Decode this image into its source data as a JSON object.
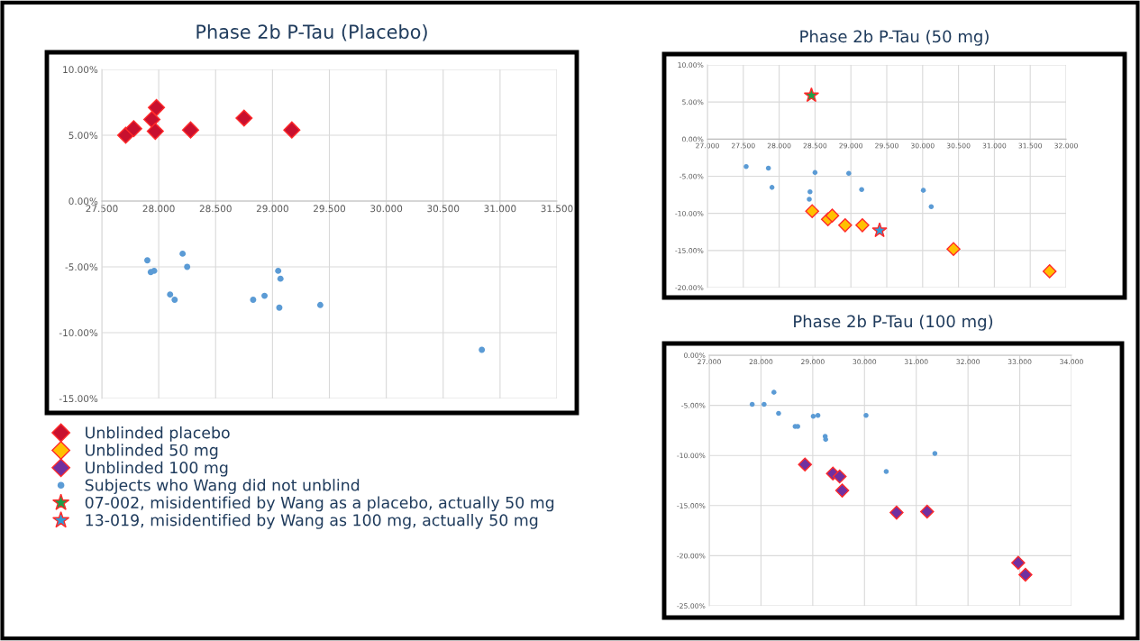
{
  "chart_data": [
    {
      "type": "scatter",
      "title": "Phase 2b P-Tau (Placebo)",
      "xlim": [
        27.5,
        31.5
      ],
      "xticks": [
        {
          "value": 27.5,
          "label": "27.500"
        },
        {
          "value": 28.0,
          "label": "28.000"
        },
        {
          "value": 28.5,
          "label": "28.500"
        },
        {
          "value": 29.0,
          "label": "29.000"
        },
        {
          "value": 29.5,
          "label": "29.500"
        },
        {
          "value": 30.0,
          "label": "30.000"
        },
        {
          "value": 30.5,
          "label": "30.500"
        },
        {
          "value": 31.0,
          "label": "31.000"
        },
        {
          "value": 31.5,
          "label": "31.500"
        }
      ],
      "ylim": [
        -15,
        10
      ],
      "yticks": [
        {
          "value": 10,
          "label": "10.00%"
        },
        {
          "value": 5,
          "label": "5.00%"
        },
        {
          "value": 0,
          "label": "0.00%"
        },
        {
          "value": -5,
          "label": "-5.00%"
        },
        {
          "value": -10,
          "label": "-10.00%"
        },
        {
          "value": -15,
          "label": "-15.00%"
        }
      ],
      "grid": true,
      "legend": "bottom",
      "series": [
        {
          "name": "Unblinded placebo",
          "color": "#c8102e",
          "marker": "diamond",
          "x": [
            27.71,
            27.78,
            27.94,
            27.98,
            27.97,
            28.28,
            28.75,
            29.17
          ],
          "values": [
            5.0,
            5.5,
            6.2,
            7.1,
            5.3,
            5.4,
            6.3,
            5.4
          ]
        },
        {
          "name": "Subjects who Wang did not unblind",
          "color": "#5b9bd5",
          "marker": "circle",
          "x": [
            27.9,
            27.93,
            27.96,
            28.21,
            28.25,
            28.1,
            28.14,
            28.83,
            28.93,
            29.05,
            29.07,
            29.06,
            29.42,
            30.84
          ],
          "values": [
            -4.5,
            -5.4,
            -5.3,
            -4.0,
            -5.0,
            -7.1,
            -7.5,
            -7.5,
            -7.2,
            -5.3,
            -5.9,
            -8.1,
            -7.9,
            -11.3
          ]
        }
      ]
    },
    {
      "type": "scatter",
      "title": "Phase 2b P-Tau (50 mg)",
      "xlim": [
        27.0,
        32.0
      ],
      "xticks": [
        {
          "value": 27.0,
          "label": "27.000"
        },
        {
          "value": 27.5,
          "label": "27.500"
        },
        {
          "value": 28.0,
          "label": "28.000"
        },
        {
          "value": 28.5,
          "label": "28.500"
        },
        {
          "value": 29.0,
          "label": "29.000"
        },
        {
          "value": 29.5,
          "label": "29.500"
        },
        {
          "value": 30.0,
          "label": "30.000"
        },
        {
          "value": 30.5,
          "label": "30.500"
        },
        {
          "value": 31.0,
          "label": "31.000"
        },
        {
          "value": 31.5,
          "label": "31.500"
        },
        {
          "value": 32.0,
          "label": "32.000"
        }
      ],
      "ylim": [
        -20,
        10
      ],
      "yticks": [
        {
          "value": 10,
          "label": "10.00%"
        },
        {
          "value": 5,
          "label": "5.00%"
        },
        {
          "value": 0,
          "label": "0.00%"
        },
        {
          "value": -5,
          "label": "-5.00%"
        },
        {
          "value": -10,
          "label": "-10.00%"
        },
        {
          "value": -15,
          "label": "-15.00%"
        },
        {
          "value": -20,
          "label": "-20.00%"
        }
      ],
      "grid": true,
      "legend": "bottom left",
      "series": [
        {
          "name": "Unblinded 50 mg",
          "color": "#ffc000",
          "marker": "diamond",
          "x": [
            28.46,
            28.68,
            28.74,
            28.92,
            29.16,
            30.43,
            31.77
          ],
          "values": [
            -9.7,
            -10.8,
            -10.3,
            -11.6,
            -11.6,
            -14.8,
            -17.8
          ]
        },
        {
          "name": "Subjects who Wang did not unblind",
          "color": "#5b9bd5",
          "marker": "circle",
          "x": [
            27.54,
            27.85,
            27.9,
            28.5,
            28.43,
            28.42,
            28.97,
            29.15,
            30.01,
            30.12
          ],
          "values": [
            -3.7,
            -3.9,
            -6.5,
            -4.5,
            -7.1,
            -8.1,
            -4.6,
            -6.8,
            -6.9,
            -9.1
          ]
        },
        {
          "name": "07-002, misidentified by Wang as a placebo, actually 50 mg",
          "color": "#1e9e48",
          "marker": "star",
          "x": [
            28.45
          ],
          "values": [
            5.9
          ]
        },
        {
          "name": "13-019, misidentified by Wang as 100 mg, actually 50 mg",
          "color": "#2e9bd6",
          "marker": "star",
          "x": [
            29.4
          ],
          "values": [
            -12.3
          ]
        }
      ]
    },
    {
      "type": "scatter",
      "title": "Phase 2b P-Tau (100 mg)",
      "xlim": [
        27.0,
        34.0
      ],
      "xticks": [
        {
          "value": 27.0,
          "label": "27.000"
        },
        {
          "value": 28.0,
          "label": "28.000"
        },
        {
          "value": 29.0,
          "label": "29.000"
        },
        {
          "value": 30.0,
          "label": "30.000"
        },
        {
          "value": 31.0,
          "label": "31.000"
        },
        {
          "value": 32.0,
          "label": "32.000"
        },
        {
          "value": 33.0,
          "label": "33.000"
        },
        {
          "value": 34.0,
          "label": "34.000"
        }
      ],
      "ylim": [
        -25,
        0
      ],
      "yticks": [
        {
          "value": 0,
          "label": "0.00%"
        },
        {
          "value": -5,
          "label": "-5.00%"
        },
        {
          "value": -10,
          "label": "-10.00%"
        },
        {
          "value": -15,
          "label": "-15.00%"
        },
        {
          "value": -20,
          "label": "-20.00%"
        },
        {
          "value": -25,
          "label": "-25.00%"
        }
      ],
      "grid": true,
      "legend": "left",
      "series": [
        {
          "name": "Unblinded 100 mg",
          "color": "#7030a0",
          "marker": "diamond",
          "x": [
            28.85,
            29.39,
            29.52,
            29.57,
            30.62,
            31.21,
            32.97,
            33.11
          ],
          "values": [
            -10.9,
            -11.8,
            -12.1,
            -13.5,
            -15.7,
            -15.6,
            -20.7,
            -21.9
          ]
        },
        {
          "name": "Subjects who Wang did not unblind",
          "color": "#5b9bd5",
          "marker": "circle",
          "x": [
            27.83,
            28.06,
            28.25,
            28.34,
            28.66,
            28.71,
            29.01,
            29.1,
            29.24,
            29.25,
            30.03,
            31.36,
            30.42
          ],
          "values": [
            -4.9,
            -4.9,
            -3.7,
            -5.8,
            -7.1,
            -7.1,
            -6.1,
            -6.0,
            -8.1,
            -8.4,
            -6.0,
            -9.8,
            -11.6
          ]
        }
      ]
    }
  ]
}
